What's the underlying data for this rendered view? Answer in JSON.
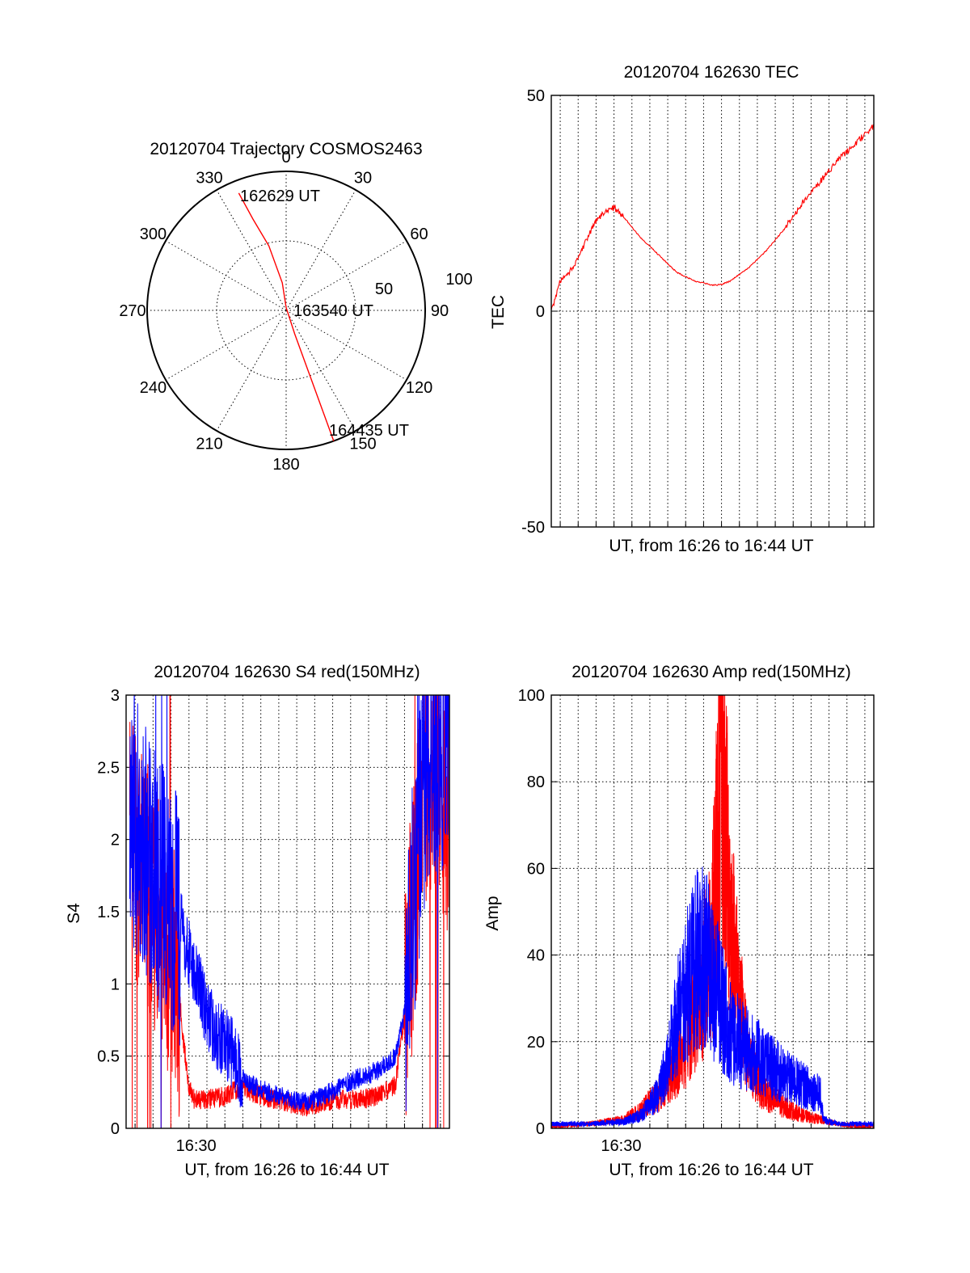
{
  "chart_data": [
    {
      "type": "polar",
      "title": "20120704 Trajectory COSMOS2463",
      "angle_labels": [
        "0",
        "30",
        "60",
        "90",
        "120",
        "150",
        "180",
        "210",
        "240",
        "270",
        "300",
        "330"
      ],
      "radial_labels": [
        "50",
        "100"
      ],
      "series": [
        {
          "color": "#ff0000",
          "points_az_r": [
            [
              338,
              91
            ],
            [
              340,
              70
            ],
            [
              345,
              48
            ],
            [
              352,
              20
            ],
            [
              0,
              2
            ],
            [
              160,
              18
            ],
            [
              160,
              52
            ],
            [
              160,
              80
            ],
            [
              160,
              100
            ]
          ]
        }
      ],
      "annotations": [
        "162629 UT",
        "163540 UT",
        "164435 UT"
      ]
    },
    {
      "type": "line",
      "title": "20120704 162630 TEC",
      "xlabel": "UT, from 16:26 to 16:44 UT",
      "ylabel": "TEC",
      "xlim": [
        0,
        18
      ],
      "ylim": [
        -50,
        50
      ],
      "yticks": [
        "-50",
        "0",
        "50"
      ],
      "grid": true,
      "series": [
        {
          "color": "#ff0000",
          "x": [
            0,
            0.5,
            1,
            1.5,
            2,
            2.5,
            3,
            3.5,
            4,
            5,
            6,
            7,
            8,
            9,
            9.5,
            10,
            11,
            12,
            13,
            14,
            15,
            16,
            17,
            18
          ],
          "y": [
            0,
            7,
            9,
            12,
            17,
            21,
            23,
            24,
            22,
            17,
            13,
            9,
            7,
            6,
            6.2,
            7,
            10,
            14,
            19,
            25,
            30,
            35,
            39,
            43
          ]
        }
      ]
    },
    {
      "type": "line",
      "title": "20120704 162630 S4 red(150MHz)",
      "xlabel": "UT, from 16:26 to 16:44 UT",
      "ylabel": "S4",
      "xlim": [
        0,
        18
      ],
      "ylim": [
        0,
        3
      ],
      "yticks": [
        "0",
        "0.5",
        "1",
        "1.5",
        "2",
        "2.5",
        "3"
      ],
      "xticks": [
        "16:30"
      ],
      "grid": true,
      "series": [
        {
          "color": "#ff0000",
          "x": [
            0.2,
            0.8,
            1.5,
            2.2,
            2.9,
            3.2,
            3.5,
            3.8,
            4.5,
            5.5,
            6.5,
            7,
            8,
            9,
            9.5,
            10,
            11,
            12,
            13,
            14,
            15,
            15.5,
            16,
            16.5,
            17,
            17.5,
            18
          ],
          "y": [
            2.0,
            1.8,
            1.6,
            1.3,
            1.0,
            0.6,
            0.3,
            0.2,
            0.2,
            0.22,
            0.3,
            0.25,
            0.2,
            0.18,
            0.15,
            0.15,
            0.18,
            0.2,
            0.2,
            0.22,
            0.3,
            0.8,
            1.5,
            2.3,
            2.5,
            2.4,
            2.2
          ]
        },
        {
          "color": "#0000ff",
          "x": [
            0.2,
            0.8,
            1.5,
            2.2,
            2.9,
            3.5,
            4,
            4.5,
            5,
            5.5,
            6,
            6.5,
            7,
            8,
            9,
            10,
            11,
            12,
            13,
            14,
            15,
            15.5,
            16,
            16.5,
            17,
            17.5,
            18
          ],
          "y": [
            2.2,
            2.0,
            1.8,
            1.6,
            1.45,
            1.2,
            1.0,
            0.8,
            0.65,
            0.6,
            0.5,
            0.35,
            0.3,
            0.25,
            0.2,
            0.18,
            0.22,
            0.3,
            0.35,
            0.4,
            0.5,
            0.8,
            1.6,
            2.3,
            2.6,
            2.7,
            2.6
          ]
        }
      ]
    },
    {
      "type": "line",
      "title": "20120704 162630 Amp red(150MHz)",
      "xlabel": "UT, from 16:26 to 16:44 UT",
      "ylabel": "Amp",
      "xlim": [
        0,
        18
      ],
      "ylim": [
        0,
        100
      ],
      "yticks": [
        "0",
        "20",
        "40",
        "60",
        "80",
        "100"
      ],
      "xticks": [
        "16:30"
      ],
      "grid": true,
      "series": [
        {
          "color": "#ff0000",
          "x": [
            0,
            2,
            4,
            5,
            6,
            7,
            7.5,
            8,
            8.5,
            9,
            9.5,
            10,
            10.5,
            11,
            12,
            13,
            14,
            15,
            16,
            17,
            18
          ],
          "y": [
            0.5,
            1,
            2,
            4,
            8,
            15,
            20,
            28,
            35,
            45,
            85,
            50,
            30,
            15,
            8,
            5,
            3,
            2,
            1,
            0.5,
            0.5
          ]
        },
        {
          "color": "#0000ff",
          "x": [
            0,
            2,
            4,
            5,
            6,
            6.5,
            7,
            7.5,
            8,
            8.5,
            9,
            9.5,
            10,
            10.5,
            11,
            12,
            13,
            14,
            15,
            15.2,
            16,
            17,
            18
          ],
          "y": [
            1,
            1,
            1.5,
            3,
            8,
            15,
            25,
            32,
            38,
            40,
            35,
            28,
            22,
            20,
            18,
            15,
            12,
            10,
            8,
            2,
            1,
            1,
            1
          ]
        }
      ]
    }
  ],
  "annotations": {
    "16:30": "16:30"
  }
}
